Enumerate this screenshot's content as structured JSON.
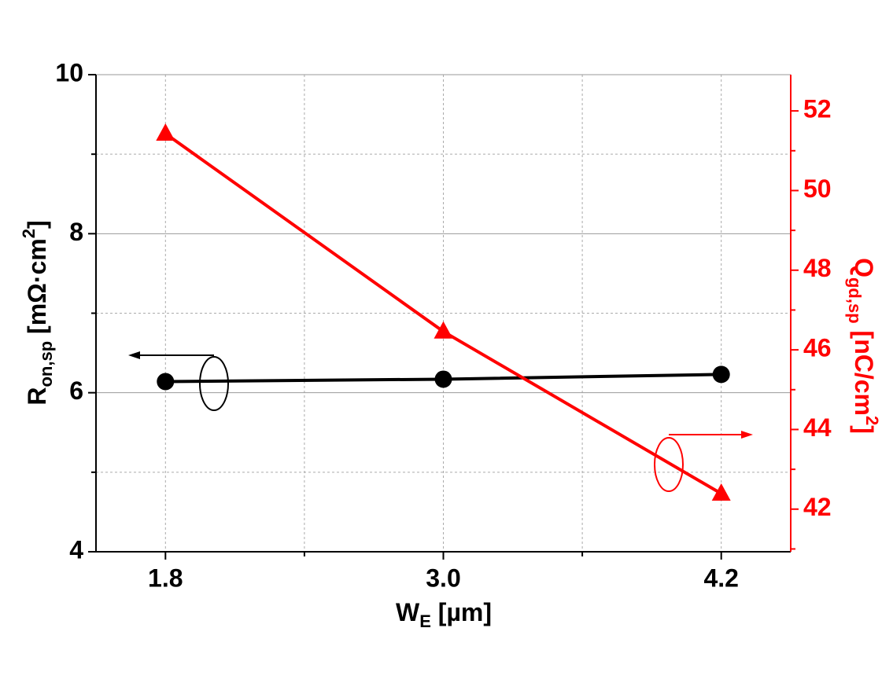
{
  "chart_data": {
    "type": "line",
    "x_label": {
      "main": "W",
      "sub": "E",
      "rest": " [µm]"
    },
    "y_label": {
      "main": "R",
      "sub": "on,sp",
      "rest": " [mΩ·cm",
      "sup": "2",
      "end": "]"
    },
    "y2_label": {
      "main": "Q",
      "sub": "gd,sp",
      "rest": " [nC/cm",
      "sup": "2",
      "end": "]"
    },
    "x": [
      1.8,
      3.0,
      4.2
    ],
    "series": [
      {
        "name": "Ron,sp",
        "color": "#000000",
        "marker": "circle",
        "values": [
          6.14,
          6.17,
          6.23
        ]
      },
      {
        "name": "Qgd,sp",
        "color": "#ff0000",
        "marker": "triangle",
        "axis": "y2",
        "values": [
          51.43,
          46.46,
          42.39
        ]
      }
    ],
    "xlim": [
      1.5,
      4.5
    ],
    "xticks": [
      1.8,
      {
        "value": 3,
        "label": "3.0"
      },
      4.2
    ],
    "xminorticks": [
      2.4,
      3.6
    ],
    "ylim": [
      4,
      10
    ],
    "yticks": [
      4,
      6,
      8,
      10
    ],
    "yminorticks": [
      5,
      7,
      9
    ],
    "y2lim": [
      40.93,
      52.91
    ],
    "y2ticks": [
      42,
      44,
      46,
      48,
      50,
      52
    ],
    "y2minorticks": [
      41,
      43,
      45,
      47,
      49,
      51
    ],
    "grid": true
  }
}
